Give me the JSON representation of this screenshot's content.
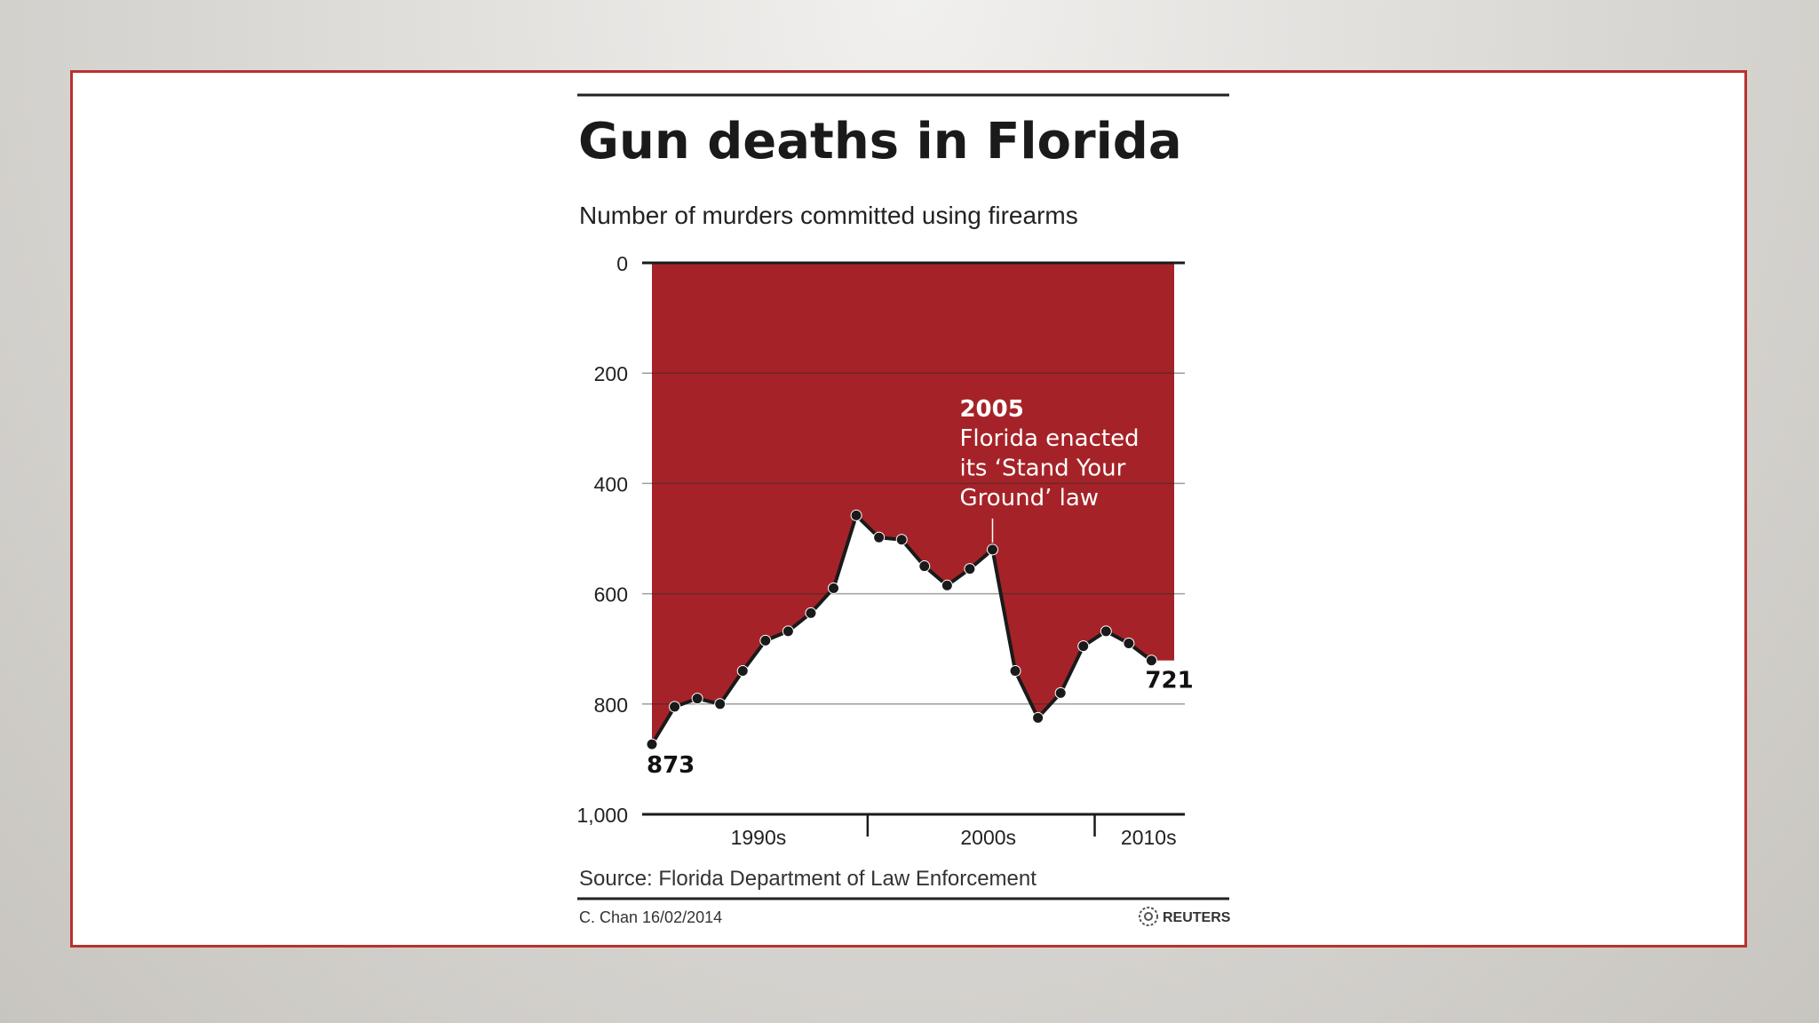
{
  "chart_data": {
    "type": "area",
    "title": "Gun deaths in Florida",
    "subtitle": "Number of murders committed using firearms",
    "y_inverted": true,
    "ylim": [
      0,
      1000
    ],
    "yticks": [
      0,
      200,
      400,
      600,
      800,
      1000
    ],
    "ytick_labels": [
      "0",
      "200",
      "400",
      "600",
      "800",
      "1,000"
    ],
    "x_groups": [
      "1990s",
      "2000s",
      "2010s"
    ],
    "x": [
      1990,
      1991,
      1992,
      1993,
      1994,
      1995,
      1996,
      1997,
      1998,
      1999,
      2000,
      2001,
      2002,
      2003,
      2004,
      2005,
      2006,
      2007,
      2008,
      2009,
      2010,
      2011,
      2012,
      2013
    ],
    "values": [
      873,
      805,
      790,
      800,
      740,
      685,
      668,
      635,
      590,
      458,
      498,
      502,
      550,
      585,
      555,
      520,
      740,
      825,
      780,
      695,
      668,
      690,
      721,
      721
    ],
    "fill_color": "#a52328",
    "line_color": "#1a1a1a",
    "grid": true,
    "labels": {
      "start": "873",
      "end": "721"
    },
    "annotation": {
      "year_label": "2005",
      "lines": [
        "Florida enacted",
        "its ‘Stand Your",
        "Ground’ law"
      ]
    },
    "source": "Source: Florida Department of Law Enforcement",
    "credit": "C. Chan  16/02/2014",
    "brand": "REUTERS"
  },
  "colors": {
    "frame": "#b8322f",
    "accent": "#a52328"
  },
  "icons": {
    "brand": "reuters-logo-icon"
  }
}
